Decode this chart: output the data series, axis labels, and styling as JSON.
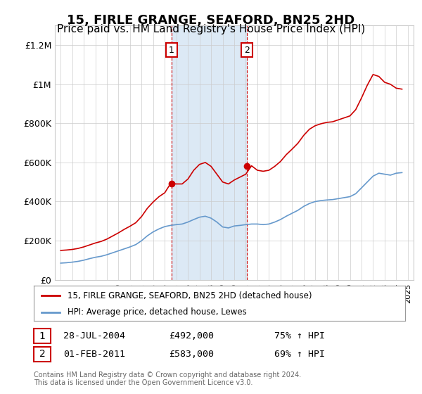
{
  "title": "15, FIRLE GRANGE, SEAFORD, BN25 2HD",
  "subtitle": "Price paid vs. HM Land Registry's House Price Index (HPI)",
  "title_fontsize": 13,
  "subtitle_fontsize": 11,
  "line1_color": "#cc0000",
  "line2_color": "#6699cc",
  "ylim": [
    0,
    1300000
  ],
  "yticks": [
    0,
    200000,
    400000,
    600000,
    800000,
    1000000,
    1200000
  ],
  "ytick_labels": [
    "£0",
    "£200K",
    "£400K",
    "£600K",
    "£800K",
    "£1M",
    "£1.2M"
  ],
  "marker1_date": "2004-07-28",
  "marker1_price": 492000,
  "marker2_date": "2011-02-01",
  "marker2_price": 583000,
  "shade_color": "#dce9f5",
  "legend_line1": "15, FIRLE GRANGE, SEAFORD, BN25 2HD (detached house)",
  "legend_line2": "HPI: Average price, detached house, Lewes",
  "annotation1_date": "28-JUL-2004",
  "annotation1_price": "£492,000",
  "annotation1_pct": "75% ↑ HPI",
  "annotation2_date": "01-FEB-2011",
  "annotation2_price": "£583,000",
  "annotation2_pct": "69% ↑ HPI",
  "footer": "Contains HM Land Registry data © Crown copyright and database right 2024.\nThis data is licensed under the Open Government Licence v3.0.",
  "background_color": "#ffffff"
}
